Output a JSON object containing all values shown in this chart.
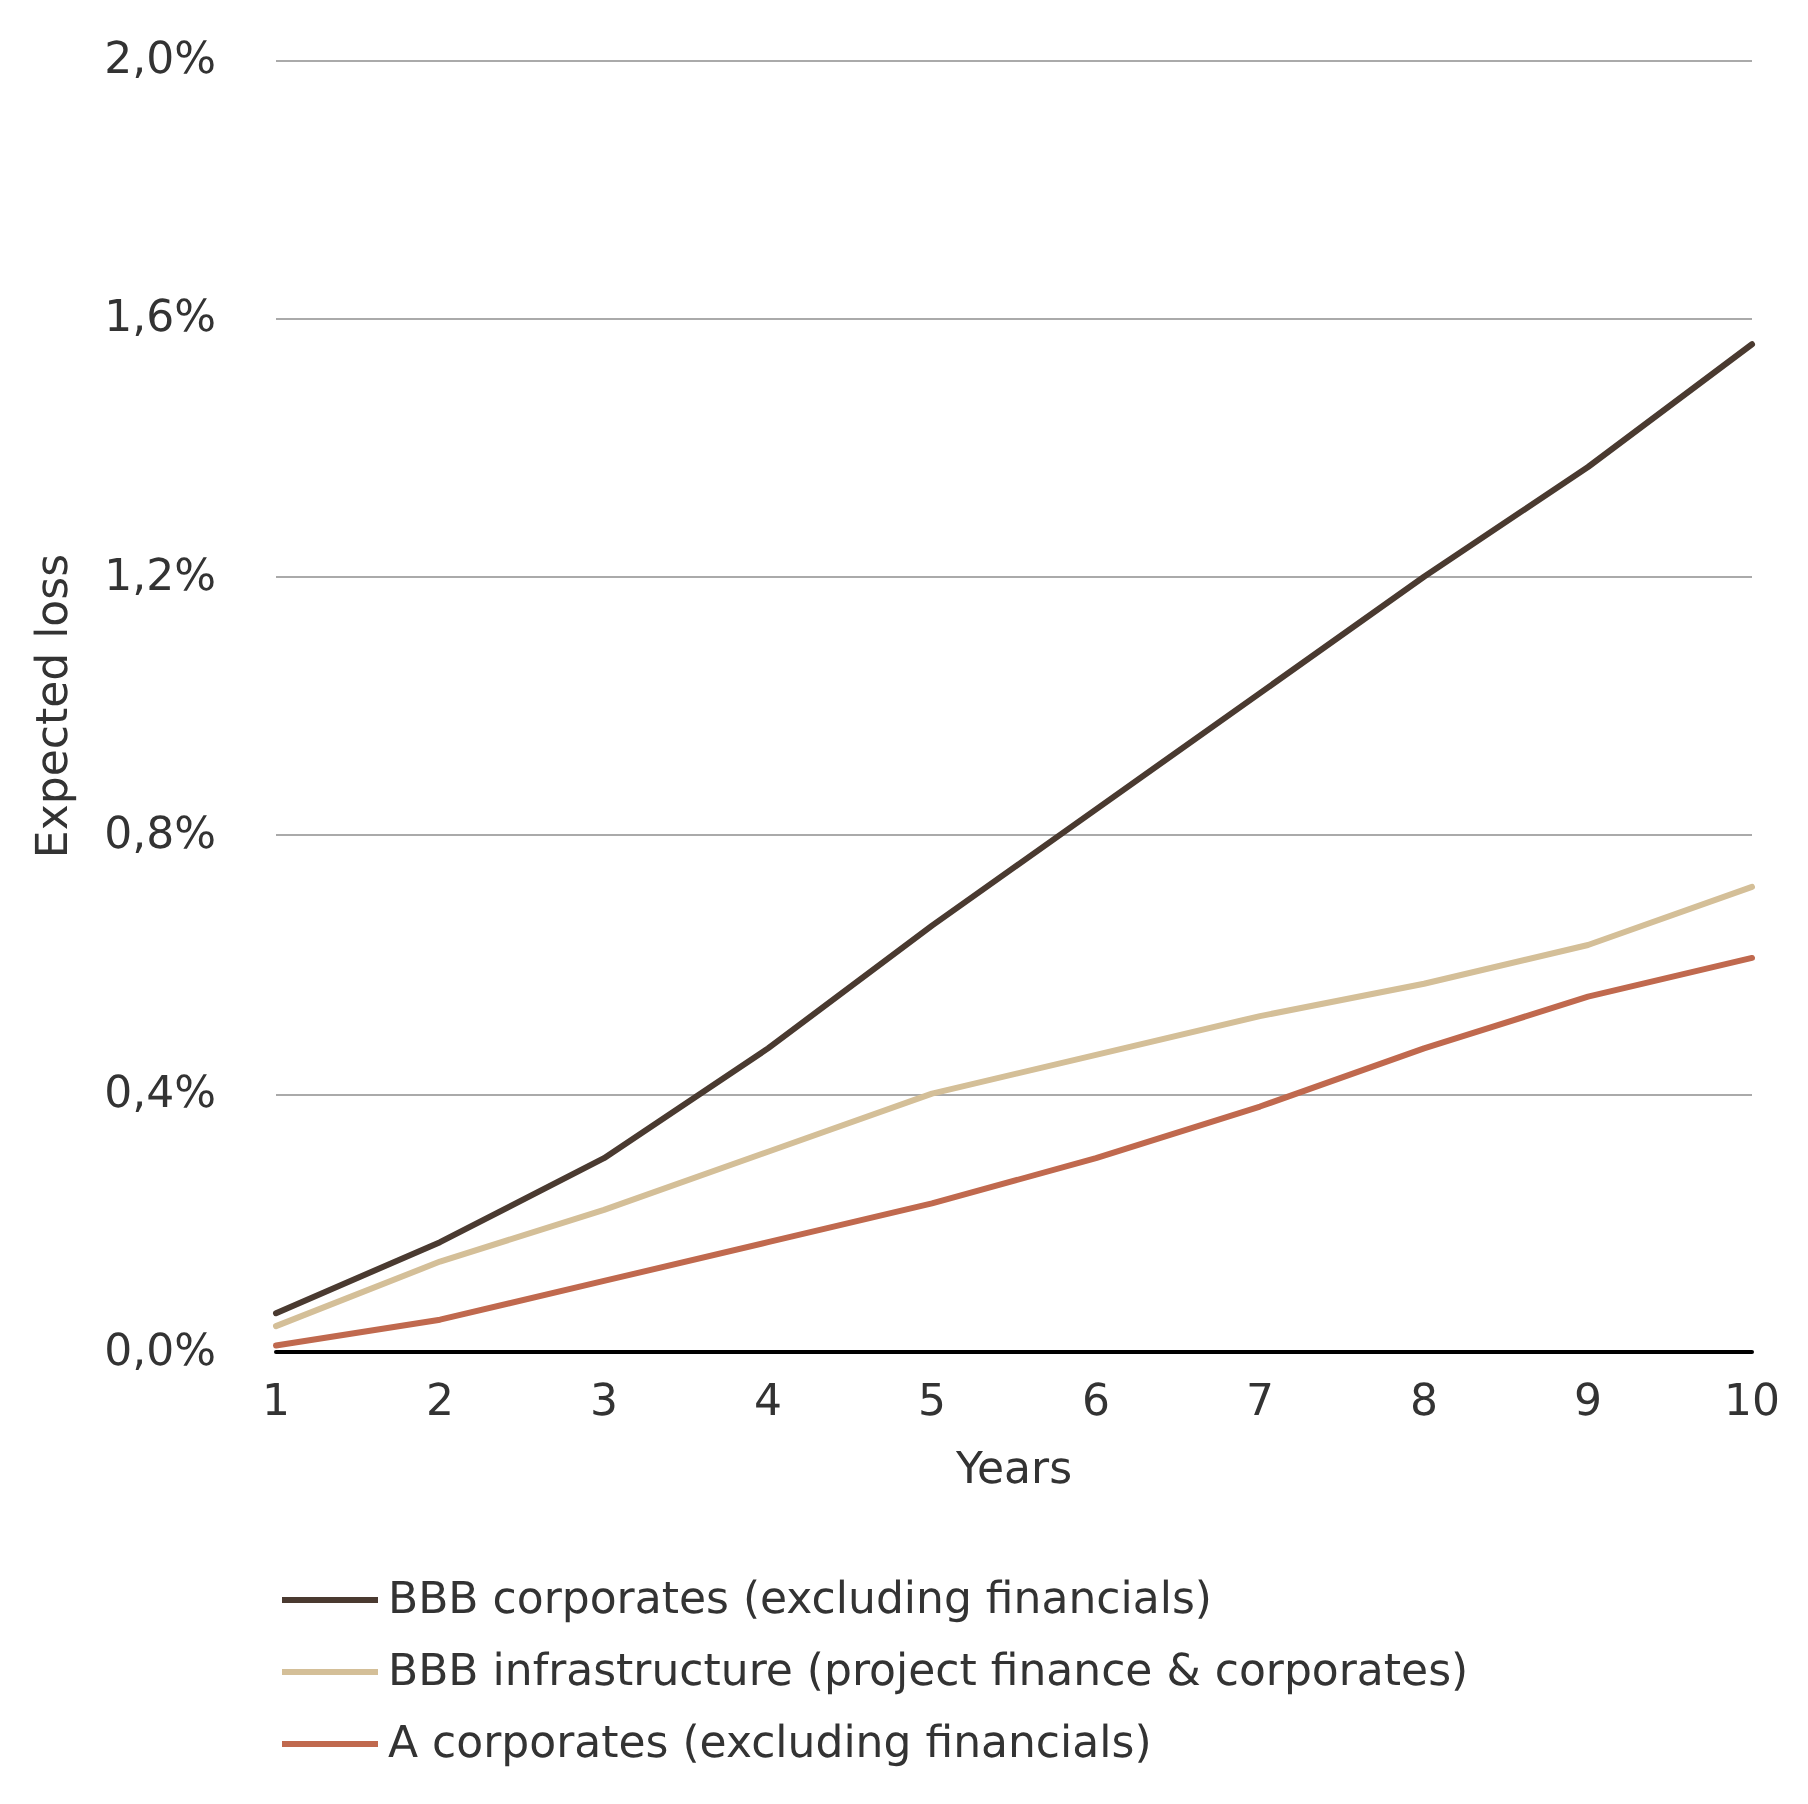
{
  "chart_data": {
    "type": "line",
    "xlabel": "Years",
    "ylabel": "Expected loss",
    "x": [
      1,
      2,
      3,
      4,
      5,
      6,
      7,
      8,
      9,
      10
    ],
    "xlim": [
      1,
      10
    ],
    "xticks": [
      1,
      2,
      3,
      4,
      5,
      6,
      7,
      8,
      9,
      10
    ],
    "ylim": [
      0,
      2
    ],
    "yticks": [
      {
        "value": 0,
        "label": "0,0%"
      },
      {
        "value": 0.4,
        "label": "0,4%"
      },
      {
        "value": 0.8,
        "label": "0,8%"
      },
      {
        "value": 1.2,
        "label": "1,2%"
      },
      {
        "value": 1.6,
        "label": "1,6%"
      },
      {
        "value": 2,
        "label": "2,0%"
      }
    ],
    "grid": "y",
    "legend": "bottom",
    "marker": "none",
    "line_style": "solid",
    "series": [
      {
        "name": "BBB corporates (excluding financials)",
        "color": "#4a3a30",
        "values": [
          0.06,
          0.17,
          0.3,
          0.47,
          0.66,
          0.84,
          1.02,
          1.2,
          1.37,
          1.56
        ]
      },
      {
        "name": "BBB infrastructure (project finance & corporates)",
        "color": "#d4bf98",
        "values": [
          0.04,
          0.14,
          0.22,
          0.31,
          0.4,
          0.46,
          0.52,
          0.57,
          0.63,
          0.72
        ]
      },
      {
        "name": "A corporates (excluding financials)",
        "color": "#c0694e",
        "values": [
          0.01,
          0.05,
          0.11,
          0.17,
          0.23,
          0.3,
          0.38,
          0.47,
          0.55,
          0.61
        ]
      }
    ]
  }
}
